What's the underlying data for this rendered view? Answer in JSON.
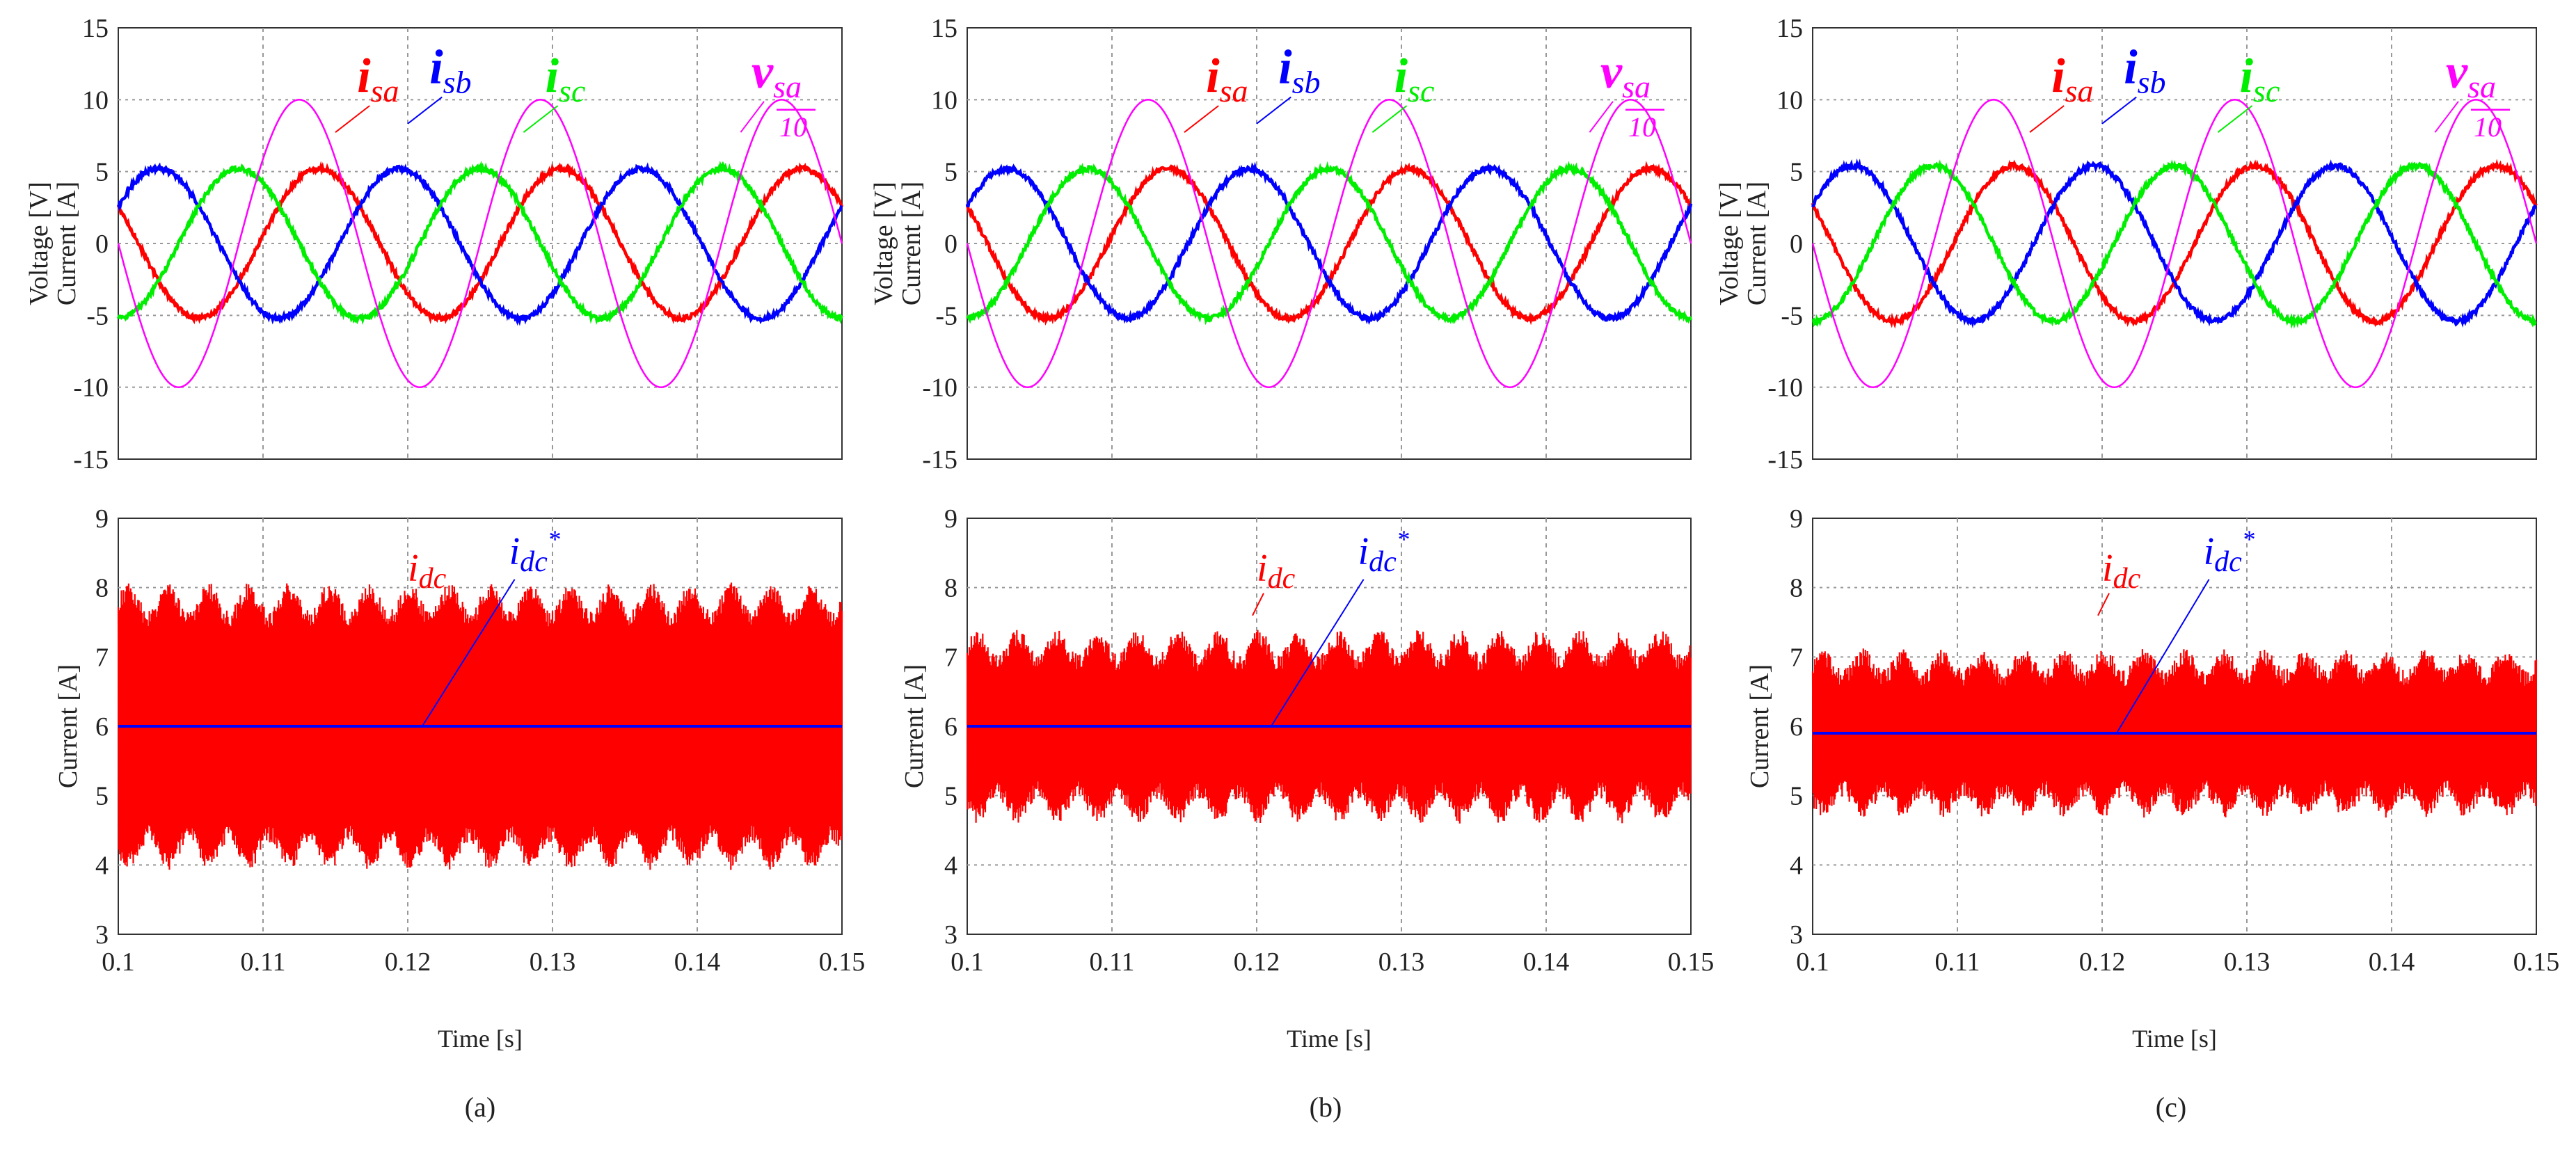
{
  "colors": {
    "isa": "#ff0000",
    "isb": "#0000ff",
    "isc": "#00ee00",
    "vsa": "#ff00ff",
    "idc": "#ff0000",
    "idc_ref": "#0000ff"
  },
  "chart_data": [
    {
      "type": "line",
      "panel": "a",
      "role": "phase",
      "ylabel_top": "Voltage [V]",
      "ylabel_bottom": "Current [A]",
      "xlim": [
        0.1,
        0.15
      ],
      "ylim": [
        -15,
        15
      ],
      "yticks": [
        "15",
        "10",
        "5",
        "0",
        "-5",
        "-10",
        "-15"
      ],
      "ytick_values": [
        15,
        10,
        5,
        0,
        -5,
        -10,
        -15
      ],
      "frequency_hz": 60,
      "series": [
        {
          "key": "isa",
          "name": "isa",
          "amplitude": 5.2,
          "phase_deg": 150
        },
        {
          "key": "isb",
          "name": "isb",
          "amplitude": 5.2,
          "phase_deg": 30
        },
        {
          "key": "isc",
          "name": "isc",
          "amplitude": 5.2,
          "phase_deg": 270
        },
        {
          "key": "vsa",
          "name": "vsa/10",
          "amplitude": 10,
          "phase_deg": 180
        }
      ],
      "labels": {
        "isa_sub": "sa",
        "isb_sub": "sb",
        "isc_sub": "sc",
        "vsa_sub": "sa",
        "div": "10",
        "i": "i",
        "v": "v"
      }
    },
    {
      "type": "area",
      "panel": "a",
      "role": "dc",
      "ylabel": "Current [A]",
      "xlabel": "Time [s]",
      "xlim": [
        0.1,
        0.15
      ],
      "ylim": [
        3,
        9
      ],
      "yticks": [
        "9",
        "8",
        "7",
        "6",
        "5",
        "4",
        "3"
      ],
      "ytick_values": [
        9,
        8,
        7,
        6,
        5,
        4,
        3
      ],
      "xticks": [
        "0.1",
        "0.11",
        "0.12",
        "0.13",
        "0.14",
        "0.15"
      ],
      "xtick_values": [
        0.1,
        0.11,
        0.12,
        0.13,
        0.14,
        0.15
      ],
      "reference": 6.0,
      "ripple_mean": 1.75,
      "ripple_variation": 0.2,
      "ripple_frequency_hz": 360,
      "labels": {
        "idc": "i",
        "idc_sub": "dc",
        "ref": "i",
        "ref_sub": "dc",
        "star": "*"
      }
    },
    {
      "type": "line",
      "panel": "b",
      "role": "phase",
      "ylabel_top": "Voltage [V]",
      "ylabel_bottom": "Current [A]",
      "xlim": [
        0.1,
        0.15
      ],
      "ylim": [
        -15,
        15
      ],
      "yticks": [
        "15",
        "10",
        "5",
        "0",
        "-5",
        "-10",
        "-15"
      ],
      "ytick_values": [
        15,
        10,
        5,
        0,
        -5,
        -10,
        -15
      ],
      "frequency_hz": 60,
      "series": [
        {
          "key": "isa",
          "name": "isa",
          "amplitude": 5.2,
          "phase_deg": 150
        },
        {
          "key": "isb",
          "name": "isb",
          "amplitude": 5.2,
          "phase_deg": 30
        },
        {
          "key": "isc",
          "name": "isc",
          "amplitude": 5.2,
          "phase_deg": 270
        },
        {
          "key": "vsa",
          "name": "vsa/10",
          "amplitude": 10,
          "phase_deg": 180
        }
      ],
      "labels": {
        "isa_sub": "sa",
        "isb_sub": "sb",
        "isc_sub": "sc",
        "vsa_sub": "sa",
        "div": "10",
        "i": "i",
        "v": "v"
      }
    },
    {
      "type": "area",
      "panel": "b",
      "role": "dc",
      "ylabel": "Current [A]",
      "xlabel": "Time [s]",
      "xlim": [
        0.1,
        0.15
      ],
      "ylim": [
        3,
        9
      ],
      "yticks": [
        "9",
        "8",
        "7",
        "6",
        "5",
        "4",
        "3"
      ],
      "ytick_values": [
        9,
        8,
        7,
        6,
        5,
        4,
        3
      ],
      "xticks": [
        "0.1",
        "0.11",
        "0.12",
        "0.13",
        "0.14",
        "0.15"
      ],
      "xtick_values": [
        0.1,
        0.11,
        0.12,
        0.13,
        0.14,
        0.15
      ],
      "reference": 6.0,
      "ripple_mean": 1.1,
      "ripple_variation": 0.18,
      "ripple_frequency_hz": 360,
      "labels": {
        "idc": "i",
        "idc_sub": "dc",
        "ref": "i",
        "ref_sub": "dc",
        "star": "*"
      }
    },
    {
      "type": "line",
      "panel": "c",
      "role": "phase",
      "ylabel_top": "Voltage [V]",
      "ylabel_bottom": "Current [A]",
      "xlim": [
        0.1,
        0.15
      ],
      "ylim": [
        -15,
        15
      ],
      "yticks": [
        "15",
        "10",
        "5",
        "0",
        "-5",
        "-10",
        "-15"
      ],
      "ytick_values": [
        15,
        10,
        5,
        0,
        -5,
        -10,
        -15
      ],
      "frequency_hz": 60,
      "series": [
        {
          "key": "isa",
          "name": "isa",
          "amplitude": 5.4,
          "phase_deg": 150
        },
        {
          "key": "isb",
          "name": "isb",
          "amplitude": 5.4,
          "phase_deg": 30
        },
        {
          "key": "isc",
          "name": "isc",
          "amplitude": 5.4,
          "phase_deg": 270
        },
        {
          "key": "vsa",
          "name": "vsa/10",
          "amplitude": 10,
          "phase_deg": 180
        }
      ],
      "labels": {
        "isa_sub": "sa",
        "isb_sub": "sb",
        "isc_sub": "sc",
        "vsa_sub": "sa",
        "div": "10",
        "i": "i",
        "v": "v"
      }
    },
    {
      "type": "area",
      "panel": "c",
      "role": "dc",
      "ylabel": "Current [A]",
      "xlabel": "Time [s]",
      "xlim": [
        0.1,
        0.15
      ],
      "ylim": [
        3,
        9
      ],
      "yticks": [
        "9",
        "8",
        "7",
        "6",
        "5",
        "4",
        "3"
      ],
      "ytick_values": [
        9,
        8,
        7,
        6,
        5,
        4,
        3
      ],
      "xticks": [
        "0.1",
        "0.11",
        "0.12",
        "0.13",
        "0.14",
        "0.15"
      ],
      "xtick_values": [
        0.1,
        0.11,
        0.12,
        0.13,
        0.14,
        0.15
      ],
      "reference": 5.9,
      "ripple_mean": 0.95,
      "ripple_variation": 0.15,
      "ripple_frequency_hz": 360,
      "labels": {
        "idc": "i",
        "idc_sub": "dc",
        "ref": "i",
        "ref_sub": "dc",
        "star": "*"
      }
    }
  ],
  "captions": [
    "(a)",
    "(b)",
    "(c)"
  ]
}
